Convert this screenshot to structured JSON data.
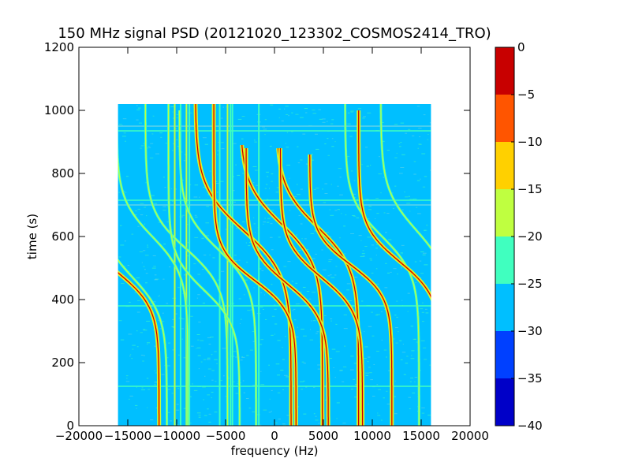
{
  "chart_data": {
    "type": "heatmap",
    "title": "150 MHz signal PSD (20121020_123302_COSMOS2414_TRO)",
    "xlabel": "frequency (Hz)",
    "ylabel": "time (s)",
    "xlim": [
      -20000,
      20000
    ],
    "ylim": [
      0,
      1200
    ],
    "x_ticks": [
      -20000,
      -15000,
      -10000,
      -5000,
      0,
      5000,
      10000,
      15000,
      20000
    ],
    "y_ticks": [
      0,
      200,
      400,
      600,
      800,
      1000,
      1200
    ],
    "data_extent": {
      "x": [
        -16000,
        16000
      ],
      "y": [
        0,
        1020
      ]
    },
    "colorbar": {
      "range": [
        -40,
        0
      ],
      "ticks": [
        0,
        -5,
        -10,
        -15,
        -20,
        -25,
        -30,
        -35,
        -40
      ],
      "levels": [
        {
          "from": -40,
          "to": -35,
          "color": "#0000c8"
        },
        {
          "from": -35,
          "to": -30,
          "color": "#0040ff"
        },
        {
          "from": -30,
          "to": -25,
          "color": "#00bfff"
        },
        {
          "from": -25,
          "to": -20,
          "color": "#40ffbf"
        },
        {
          "from": -20,
          "to": -15,
          "color": "#bfff40"
        },
        {
          "from": -15,
          "to": -10,
          "color": "#ffd000"
        },
        {
          "from": -10,
          "to": -5,
          "color": "#ff5500"
        },
        {
          "from": -5,
          "to": 0,
          "color": "#c80000"
        }
      ]
    },
    "background_level_color": "#00bfff",
    "noise_colors": [
      "#40ffbf",
      "#5fd4e8",
      "#3ff0c0"
    ],
    "strong_curves": [
      {
        "x0": -16000,
        "t0": 485,
        "A": 3000,
        "s": 110,
        "tmax": 590
      },
      {
        "x0": -3200,
        "t0": 620,
        "A": 3500,
        "s": 140,
        "tmax": 1020
      },
      {
        "x0": -2000,
        "t0": 460,
        "A": 3000,
        "s": 100,
        "tmax": 1020
      },
      {
        "x0": 700,
        "t0": 640,
        "A": 3000,
        "s": 130,
        "tmax": 890
      },
      {
        "x0": 1300,
        "t0": 450,
        "A": 3000,
        "s": 110,
        "tmax": 880
      },
      {
        "x0": 4400,
        "t0": 630,
        "A": 3000,
        "s": 130,
        "tmax": 880
      },
      {
        "x0": 4800,
        "t0": 470,
        "A": 3000,
        "s": 110,
        "tmax": 880
      },
      {
        "x0": 7800,
        "t0": 510,
        "A": 3000,
        "s": 100,
        "tmax": 860
      },
      {
        "x0": 12800,
        "t0": 520,
        "A": 3000,
        "s": 110,
        "tmax": 1000
      }
    ],
    "faint_curves": [
      {
        "x0": -14500,
        "t0": 470,
        "A": 2500,
        "s": 120,
        "tmax": 860
      },
      {
        "x0": -12500,
        "t0": 600,
        "A": 2600,
        "s": 120,
        "tmax": 1020
      },
      {
        "x0": -9000,
        "t0": 560,
        "A": 3000,
        "s": 120,
        "tmax": 1020
      },
      {
        "x0": -7200,
        "t0": 430,
        "A": 2600,
        "s": 110,
        "tmax": 1020
      },
      {
        "x0": -5800,
        "t0": 560,
        "A": 2800,
        "s": 120,
        "tmax": 1000
      },
      {
        "x0": 11000,
        "t0": 600,
        "A": 2700,
        "s": 120,
        "tmax": 1020
      },
      {
        "x0": 14500,
        "t0": 620,
        "A": 2600,
        "s": 130,
        "tmax": 1020
      }
    ],
    "vertical_lines": [
      {
        "x": -10200,
        "color": "#bfff40"
      },
      {
        "x": -9600,
        "color": "#40ffbf"
      },
      {
        "x": -9000,
        "color": "#bfff40"
      },
      {
        "x": -8700,
        "color": "#40ffbf"
      },
      {
        "x": -5600,
        "color": "#40ffbf"
      },
      {
        "x": -4800,
        "color": "#bfff40"
      },
      {
        "x": -4500,
        "color": "#40ffbf"
      },
      {
        "x": -4300,
        "color": "#40ffbf"
      },
      {
        "x": -1600,
        "color": "#40ffbf"
      }
    ],
    "horizontal_lines": [
      {
        "y": 950,
        "color": "#5fd4e8"
      },
      {
        "y": 935,
        "color": "#40ffbf"
      },
      {
        "y": 715,
        "color": "#40ffbf"
      },
      {
        "y": 700,
        "color": "#5fd4e8"
      },
      {
        "y": 380,
        "color": "#40ffbf"
      },
      {
        "y": 125,
        "color": "#40ffbf"
      }
    ]
  }
}
